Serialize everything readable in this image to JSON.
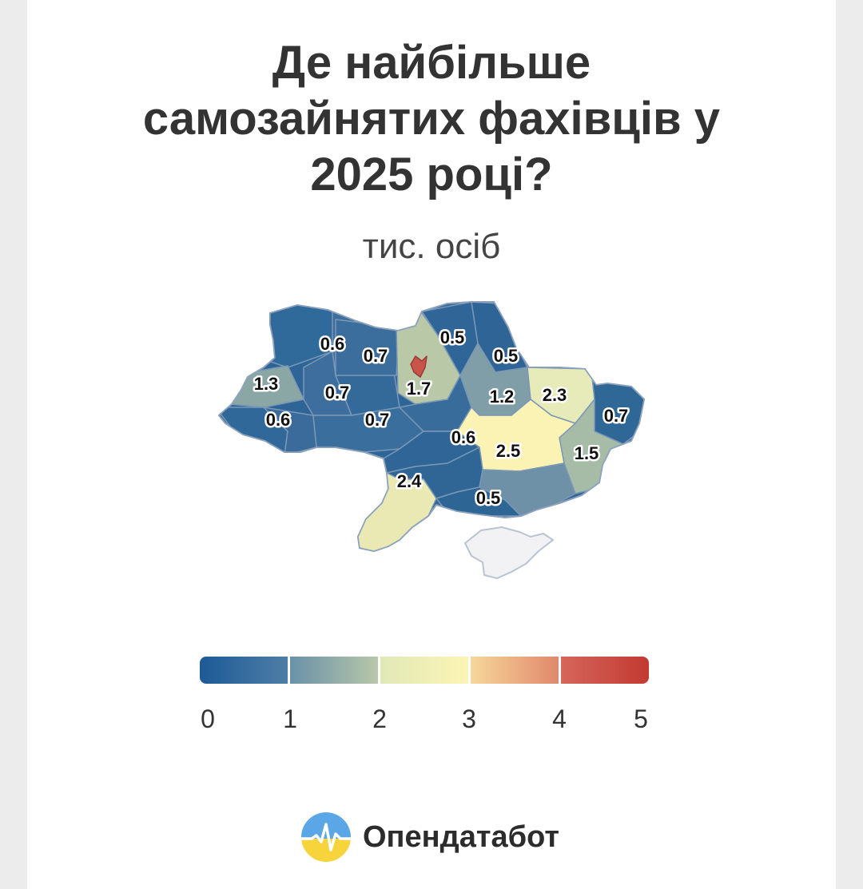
{
  "title_lines": [
    "Де найбільше",
    "самозайнятих фахівців у",
    "2025 році?"
  ],
  "subtitle": "тис. осіб",
  "map": {
    "region_values": [
      {
        "label": "0.6",
        "value": 0.6
      },
      {
        "label": "0.7",
        "value": 0.7
      },
      {
        "label": "0.5",
        "value": 0.5
      },
      {
        "label": "0.5",
        "value": 0.5
      },
      {
        "label": "1.3",
        "value": 1.3
      },
      {
        "label": "0.7",
        "value": 0.7
      },
      {
        "label": "1.7",
        "value": 1.7
      },
      {
        "label": "1.2",
        "value": 1.2
      },
      {
        "label": "2.3",
        "value": 2.3
      },
      {
        "label": "0.6",
        "value": 0.6
      },
      {
        "label": "0.7",
        "value": 0.7
      },
      {
        "label": "0.7",
        "value": 0.7
      },
      {
        "label": "0.6",
        "value": 0.6
      },
      {
        "label": "2.5",
        "value": 2.5
      },
      {
        "label": "1.5",
        "value": 1.5
      },
      {
        "label": "2.4",
        "value": 2.4
      },
      {
        "label": "0.5",
        "value": 0.5
      }
    ],
    "colors": {
      "region_border": "#6f8fae",
      "crimea": "#f2f2f5",
      "crimea_border": "#b9c3d2",
      "kyiv_city": "#c9544a"
    }
  },
  "legend": {
    "ticks": [
      "0",
      "1",
      "2",
      "3",
      "4",
      "5"
    ],
    "segments": [
      [
        "#1d5a96",
        "#4e7ea6"
      ],
      [
        "#6a91a8",
        "#b8c7a8"
      ],
      [
        "#e0e8b8",
        "#fcf5b4"
      ],
      [
        "#f6d79a",
        "#e1886c"
      ],
      [
        "#d5665a",
        "#c23a32"
      ]
    ]
  },
  "brand": {
    "name": "Опендатабот",
    "logo_colors": {
      "top": "#5aa6e6",
      "bottom": "#f7d33c",
      "line": "#ffffff"
    }
  }
}
